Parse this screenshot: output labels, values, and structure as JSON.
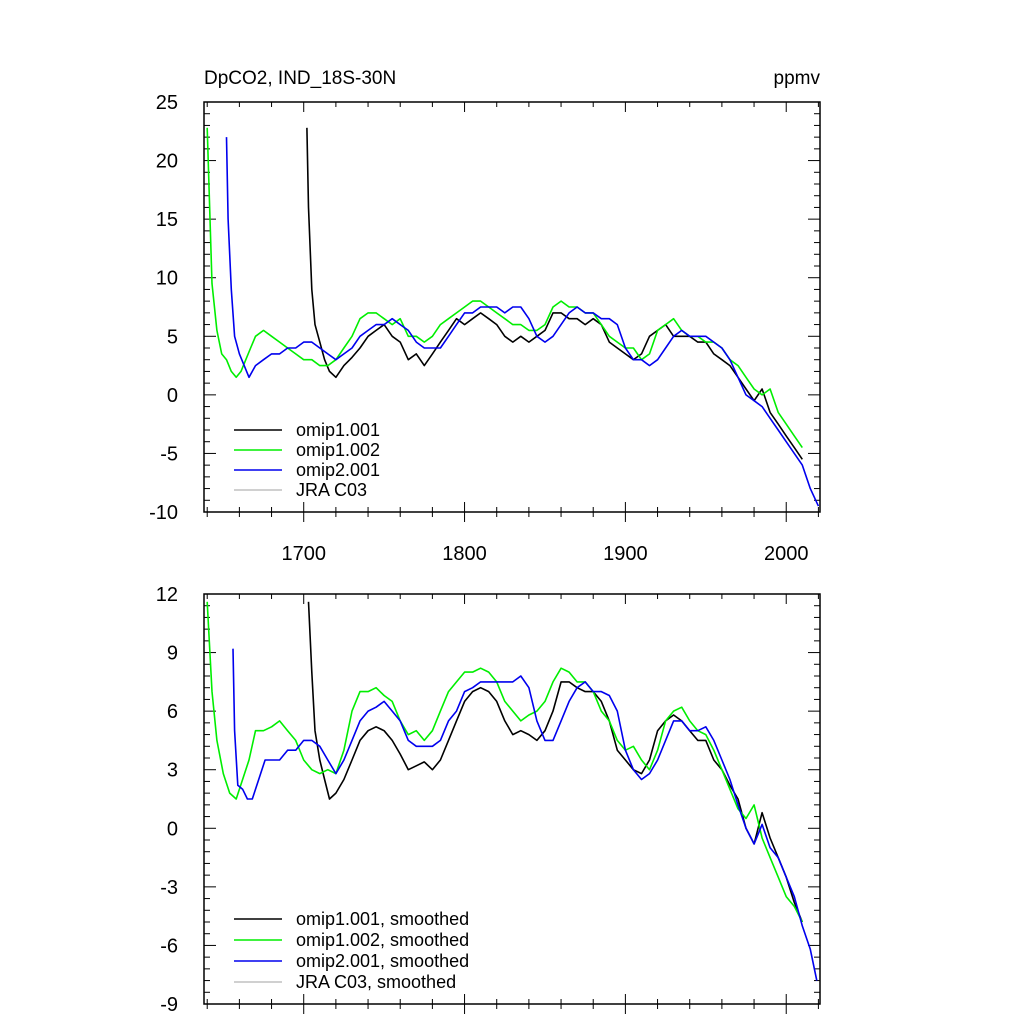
{
  "figure": {
    "background": "#ffffff",
    "series_styles": [
      {
        "name": "omip1.001",
        "color": "#000000"
      },
      {
        "name": "omip1.002",
        "color": "#00ee00"
      },
      {
        "name": "omip2.001",
        "color": "#0000ee"
      },
      {
        "name": "JRA C03",
        "color": "#c0c0c0"
      }
    ]
  },
  "chart_data": [
    {
      "type": "line",
      "title": "DpCO2, IND_18S-30N",
      "units": "ppmv",
      "xlabel": "",
      "ylabel": "",
      "xlim": [
        1638,
        2021
      ],
      "ylim": [
        -10,
        25
      ],
      "xticks": [
        1700,
        1800,
        1900,
        2000
      ],
      "yticks": [
        -10,
        -5,
        0,
        5,
        10,
        15,
        20,
        25
      ],
      "yticks_labels": [
        "-10",
        "-5",
        "0",
        "5",
        "10",
        "15",
        "20",
        "25"
      ],
      "grid": false,
      "legend": {
        "placement": "bottom-left",
        "entries": [
          "omip1.001",
          "omip1.002",
          "omip2.001",
          "JRA C03"
        ]
      },
      "series": [
        {
          "name": "omip1.001",
          "x": [
            1702,
            1703,
            1705,
            1707,
            1710,
            1713,
            1716,
            1720,
            1725,
            1730,
            1735,
            1740,
            1745,
            1750,
            1755,
            1760,
            1765,
            1770,
            1775,
            1780,
            1785,
            1790,
            1795,
            1800,
            1805,
            1810,
            1815,
            1820,
            1825,
            1830,
            1835,
            1840,
            1845,
            1850,
            1855,
            1860,
            1865,
            1870,
            1875,
            1880,
            1885,
            1890,
            1895,
            1900,
            1905,
            1910,
            1915,
            1920,
            1925,
            1930,
            1935,
            1940,
            1945,
            1950,
            1955,
            1960,
            1965,
            1970,
            1975,
            1980,
            1985,
            1990,
            1995,
            2000,
            2005,
            2010
          ],
          "y": [
            22.8,
            16,
            9,
            6,
            4.5,
            3,
            2,
            1.5,
            2.5,
            3.2,
            4,
            5,
            5.5,
            6,
            5,
            4.5,
            3,
            3.5,
            2.5,
            3.5,
            4.5,
            5.5,
            6.5,
            6,
            6.5,
            7,
            6.5,
            6,
            5,
            4.5,
            5,
            4.5,
            5,
            5.5,
            7,
            7,
            6.5,
            6.5,
            6,
            6.5,
            6,
            4.5,
            4,
            3.5,
            3,
            3.5,
            5,
            5.5,
            6,
            5,
            5,
            5,
            4.5,
            4.5,
            3.5,
            3,
            2.5,
            1.5,
            0.5,
            -0.5,
            0.5,
            -1.5,
            -2.5,
            -3.5,
            -4.5,
            -5.5
          ]
        },
        {
          "name": "omip1.002",
          "x": [
            1640,
            1643,
            1646,
            1649,
            1652,
            1655,
            1658,
            1661,
            1664,
            1667,
            1670,
            1675,
            1680,
            1685,
            1690,
            1695,
            1700,
            1705,
            1710,
            1715,
            1720,
            1725,
            1730,
            1735,
            1740,
            1745,
            1750,
            1755,
            1760,
            1765,
            1770,
            1775,
            1780,
            1785,
            1790,
            1795,
            1800,
            1805,
            1810,
            1815,
            1820,
            1825,
            1830,
            1835,
            1840,
            1845,
            1850,
            1855,
            1860,
            1865,
            1870,
            1875,
            1880,
            1885,
            1890,
            1895,
            1900,
            1905,
            1910,
            1915,
            1920,
            1925,
            1930,
            1935,
            1940,
            1945,
            1950,
            1955,
            1960,
            1965,
            1970,
            1975,
            1980,
            1985,
            1990,
            1995,
            2000,
            2005,
            2010
          ],
          "y": [
            22.8,
            9.5,
            5.5,
            3.5,
            3,
            2,
            1.5,
            2,
            3,
            4,
            5,
            5.5,
            5,
            4.5,
            4,
            3.5,
            3,
            3,
            2.5,
            2.5,
            3,
            4,
            5,
            6.5,
            7,
            7,
            6.5,
            6,
            6.5,
            5,
            5,
            4.5,
            5,
            6,
            6.5,
            7,
            7.5,
            8,
            8,
            7.5,
            7,
            6.5,
            6,
            6,
            5.5,
            5.5,
            6,
            7.5,
            8,
            7.5,
            7.5,
            7,
            7,
            6,
            5,
            4.5,
            4,
            4,
            3,
            3.5,
            5.5,
            6,
            6.5,
            5.5,
            5,
            5,
            4.5,
            4.5,
            4,
            3,
            2.5,
            1.5,
            0.5,
            0,
            0.5,
            -1.5,
            -2.5,
            -3.5,
            -4.5
          ]
        },
        {
          "name": "omip2.001",
          "x": [
            1652,
            1653,
            1655,
            1657,
            1660,
            1663,
            1666,
            1670,
            1675,
            1680,
            1685,
            1690,
            1695,
            1700,
            1705,
            1710,
            1715,
            1720,
            1725,
            1730,
            1735,
            1740,
            1745,
            1750,
            1755,
            1760,
            1765,
            1770,
            1775,
            1780,
            1785,
            1790,
            1795,
            1800,
            1805,
            1810,
            1815,
            1820,
            1825,
            1830,
            1835,
            1840,
            1845,
            1850,
            1855,
            1860,
            1865,
            1870,
            1875,
            1880,
            1885,
            1890,
            1895,
            1900,
            1905,
            1910,
            1915,
            1920,
            1925,
            1930,
            1935,
            1940,
            1945,
            1950,
            1955,
            1960,
            1965,
            1970,
            1975,
            1980,
            1985,
            1990,
            1995,
            2000,
            2005,
            2010,
            2015,
            2020
          ],
          "y": [
            22,
            15,
            9,
            5,
            3.5,
            2.5,
            1.5,
            2.5,
            3,
            3.5,
            3.5,
            4,
            4,
            4.5,
            4.5,
            4,
            3.5,
            3,
            3.5,
            4,
            5,
            5.5,
            6,
            6,
            6.5,
            6,
            5.5,
            4.5,
            4,
            4,
            4,
            5,
            6,
            7,
            7,
            7.5,
            7.5,
            7.5,
            7,
            7.5,
            7.5,
            6.5,
            5,
            4.5,
            5,
            6,
            7,
            7.5,
            7,
            7,
            6.5,
            6.5,
            6,
            4,
            3,
            3,
            2.5,
            3,
            4,
            5,
            5.5,
            5,
            5,
            5,
            4.5,
            4,
            3,
            1.5,
            0,
            -0.5,
            -1,
            -2,
            -3,
            -4,
            -5,
            -6,
            -8,
            -9.5
          ]
        },
        {
          "name": "JRA C03",
          "x": [],
          "y": []
        }
      ]
    },
    {
      "type": "line",
      "title": "",
      "units": "",
      "xlabel": "",
      "ylabel": "",
      "xlim": [
        1638,
        2021
      ],
      "ylim": [
        -9,
        12
      ],
      "xticks": [
        1700,
        1800,
        1900,
        2000
      ],
      "yticks": [
        -9,
        -6,
        -3,
        0,
        3,
        6,
        9,
        12
      ],
      "yticks_labels": [
        "-9",
        "-6",
        "-3",
        "0",
        "3",
        "6",
        "9",
        "12"
      ],
      "grid": false,
      "legend": {
        "placement": "bottom-left",
        "entries": [
          "omip1.001, smoothed",
          "omip1.002, smoothed",
          "omip2.001, smoothed",
          "JRA C03, smoothed"
        ]
      },
      "series": [
        {
          "name": "omip1.001, smoothed",
          "x": [
            1703,
            1705,
            1707,
            1710,
            1713,
            1716,
            1720,
            1725,
            1730,
            1735,
            1740,
            1745,
            1750,
            1755,
            1760,
            1765,
            1770,
            1775,
            1780,
            1785,
            1790,
            1795,
            1800,
            1805,
            1810,
            1815,
            1820,
            1825,
            1830,
            1835,
            1840,
            1845,
            1850,
            1855,
            1860,
            1865,
            1870,
            1875,
            1880,
            1885,
            1890,
            1895,
            1900,
            1905,
            1910,
            1915,
            1920,
            1925,
            1930,
            1935,
            1940,
            1945,
            1950,
            1955,
            1960,
            1965,
            1970,
            1975,
            1980,
            1985,
            1990,
            1995,
            2000,
            2005,
            2010
          ],
          "y": [
            11.6,
            8,
            5,
            3.5,
            2.5,
            1.5,
            1.8,
            2.5,
            3.5,
            4.5,
            5,
            5.2,
            5,
            4.5,
            3.8,
            3,
            3.2,
            3.4,
            3,
            3.5,
            4.5,
            5.5,
            6.5,
            7,
            7.2,
            7,
            6.5,
            5.5,
            4.8,
            5,
            4.8,
            4.5,
            5,
            6,
            7.5,
            7.5,
            7.2,
            7,
            7,
            6.5,
            5.5,
            4,
            3.5,
            3,
            2.8,
            3.5,
            5,
            5.5,
            5.8,
            5.5,
            5,
            4.5,
            4.5,
            3.5,
            3,
            2.2,
            1.5,
            0,
            -0.8,
            0.8,
            -0.5,
            -1.5,
            -2.5,
            -3.8,
            -4.8
          ]
        },
        {
          "name": "omip1.002, smoothed",
          "x": [
            1640,
            1643,
            1646,
            1650,
            1654,
            1658,
            1662,
            1666,
            1670,
            1675,
            1680,
            1685,
            1690,
            1695,
            1700,
            1705,
            1710,
            1715,
            1720,
            1725,
            1730,
            1735,
            1740,
            1745,
            1750,
            1755,
            1760,
            1765,
            1770,
            1775,
            1780,
            1785,
            1790,
            1795,
            1800,
            1805,
            1810,
            1815,
            1820,
            1825,
            1830,
            1835,
            1840,
            1845,
            1850,
            1855,
            1860,
            1865,
            1870,
            1875,
            1880,
            1885,
            1890,
            1895,
            1900,
            1905,
            1910,
            1915,
            1920,
            1925,
            1930,
            1935,
            1940,
            1945,
            1950,
            1955,
            1960,
            1965,
            1970,
            1975,
            1980,
            1985,
            1990,
            1995,
            2000,
            2005,
            2010
          ],
          "y": [
            11.6,
            7,
            4.5,
            2.8,
            1.8,
            1.5,
            2.5,
            3.5,
            5,
            5,
            5.2,
            5.5,
            5,
            4.5,
            3.5,
            3,
            2.8,
            3,
            2.8,
            4,
            6,
            7,
            7,
            7.2,
            6.8,
            6.5,
            5.5,
            4.8,
            5,
            4.5,
            5,
            6,
            7,
            7.5,
            8,
            8,
            8.2,
            8,
            7.5,
            6.5,
            6,
            5.5,
            5.8,
            6,
            6.5,
            7.5,
            8.2,
            8,
            7.5,
            7.5,
            7,
            6,
            5.5,
            4.5,
            4,
            4.2,
            3.5,
            3,
            4,
            5.5,
            6,
            6.2,
            5.5,
            5,
            4.8,
            4,
            3,
            2,
            1,
            0.5,
            1.2,
            -0.5,
            -1.5,
            -2.5,
            -3.5,
            -4,
            -4.8
          ]
        },
        {
          "name": "omip2.001, smoothed",
          "x": [
            1656,
            1657,
            1659,
            1662,
            1665,
            1668,
            1672,
            1676,
            1680,
            1685,
            1690,
            1695,
            1700,
            1705,
            1710,
            1715,
            1720,
            1725,
            1730,
            1735,
            1740,
            1745,
            1750,
            1755,
            1760,
            1765,
            1770,
            1775,
            1780,
            1785,
            1790,
            1795,
            1800,
            1805,
            1810,
            1815,
            1820,
            1825,
            1830,
            1835,
            1840,
            1845,
            1850,
            1855,
            1860,
            1865,
            1870,
            1875,
            1880,
            1885,
            1890,
            1895,
            1900,
            1905,
            1910,
            1915,
            1920,
            1925,
            1930,
            1935,
            1940,
            1945,
            1950,
            1955,
            1960,
            1965,
            1970,
            1975,
            1980,
            1985,
            1990,
            1995,
            2000,
            2005,
            2010,
            2015,
            2019
          ],
          "y": [
            9.2,
            5,
            2.2,
            2,
            1.5,
            1.5,
            2.5,
            3.5,
            3.5,
            3.5,
            4,
            4,
            4.5,
            4.5,
            4.2,
            3.5,
            2.8,
            3.5,
            4.5,
            5.5,
            6,
            6.2,
            6.5,
            6,
            5.5,
            4.5,
            4.2,
            4.2,
            4.2,
            4.5,
            5.5,
            6,
            7,
            7.2,
            7.5,
            7.5,
            7.5,
            7.5,
            7.5,
            7.8,
            7.2,
            5.5,
            4.5,
            4.5,
            5.5,
            6.5,
            7.2,
            7.5,
            7,
            7,
            6.8,
            6,
            4,
            3,
            2.5,
            2.8,
            3.5,
            4.5,
            5.5,
            5.5,
            5,
            5,
            5.2,
            4.5,
            3.5,
            2.5,
            1.2,
            0,
            -0.8,
            0.2,
            -1,
            -1.5,
            -2.5,
            -3.5,
            -5,
            -6.2,
            -7.8
          ]
        },
        {
          "name": "JRA C03, smoothed",
          "x": [],
          "y": []
        }
      ]
    }
  ]
}
